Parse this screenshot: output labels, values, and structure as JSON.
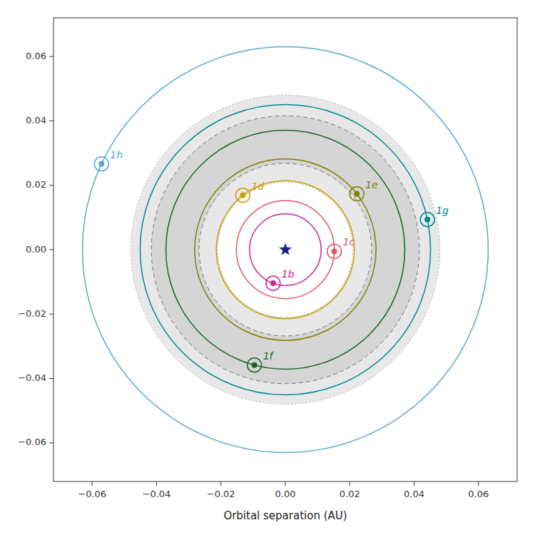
{
  "chart_data": {
    "type": "orbit",
    "xlabel": "Orbital separation (AU)",
    "xlim": [
      -0.072,
      0.072
    ],
    "ylim": [
      -0.072,
      0.072
    ],
    "xticks": [
      {
        "value": -0.06,
        "label": "−0.06"
      },
      {
        "value": -0.04,
        "label": "−0.04"
      },
      {
        "value": -0.02,
        "label": "−0.02"
      },
      {
        "value": 0.0,
        "label": "0.00"
      },
      0.02,
      0.04,
      0.06
    ],
    "yticks": [
      {
        "value": -0.06,
        "label": "−0.06"
      },
      {
        "value": -0.04,
        "label": "−0.04"
      },
      {
        "value": -0.02,
        "label": "−0.02"
      },
      {
        "value": 0.0,
        "label": "0.00"
      },
      0.02,
      0.04,
      0.06
    ],
    "series": [
      {
        "name": "1b",
        "color": "#cc2299",
        "radius": 0.01111,
        "angle_deg": 250
      },
      {
        "name": "1c",
        "color": "#e05565",
        "radius": 0.01521,
        "angle_deg": 358
      },
      {
        "name": "1d",
        "color": "#c8a000",
        "radius": 0.02144,
        "angle_deg": 128
      },
      {
        "name": "1e",
        "color": "#808000",
        "radius": 0.02817,
        "angle_deg": 38
      },
      {
        "name": "1f",
        "color": "#1a6628",
        "radius": 0.0371,
        "angle_deg": 255
      },
      {
        "name": "1g",
        "color": "#008b8b",
        "radius": 0.0451,
        "angle_deg": 12
      },
      {
        "name": "1h",
        "color": "#55aacc",
        "radius": 0.063,
        "angle_deg": 155
      }
    ],
    "habitable_zone": {
      "inner_dotted": 0.021,
      "inner_dashed": 0.0268,
      "outer_dashed": 0.0416,
      "outer_dotted": 0.048
    },
    "star_color": "#1a237e"
  }
}
